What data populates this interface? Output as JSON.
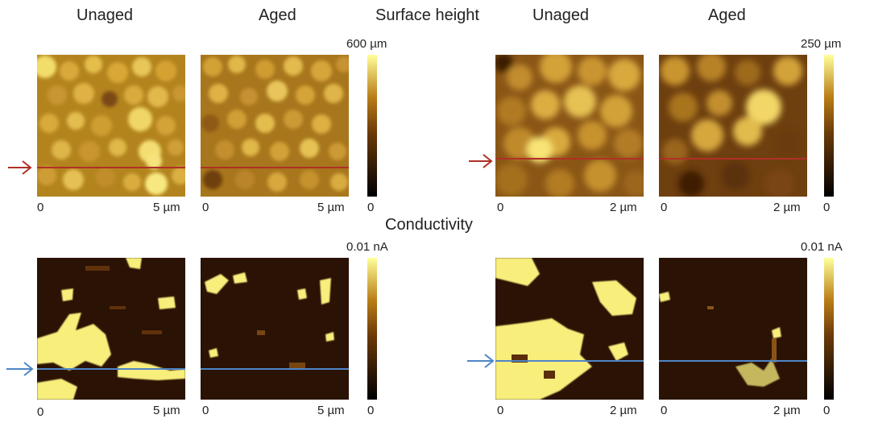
{
  "titles": {
    "surface_height": "Surface height",
    "conductivity": "Conductivity"
  },
  "columns": [
    "Unaged",
    "Aged",
    "Unaged",
    "Aged"
  ],
  "scale_max": {
    "height_left": "600 µm",
    "height_right": "250 µm",
    "cond_left": "0.01 nA",
    "cond_right": "0.01 nA"
  },
  "scale_min": "0",
  "axis": {
    "zero": "0",
    "five_um": "5 µm",
    "two_um": "2 µm"
  },
  "colors": {
    "height_line": "#b03026",
    "cond_line": "#4d86c6",
    "colormap_low": "#000000",
    "colormap_mid": "#b06d13",
    "colormap_high": "#ffff9a"
  }
}
